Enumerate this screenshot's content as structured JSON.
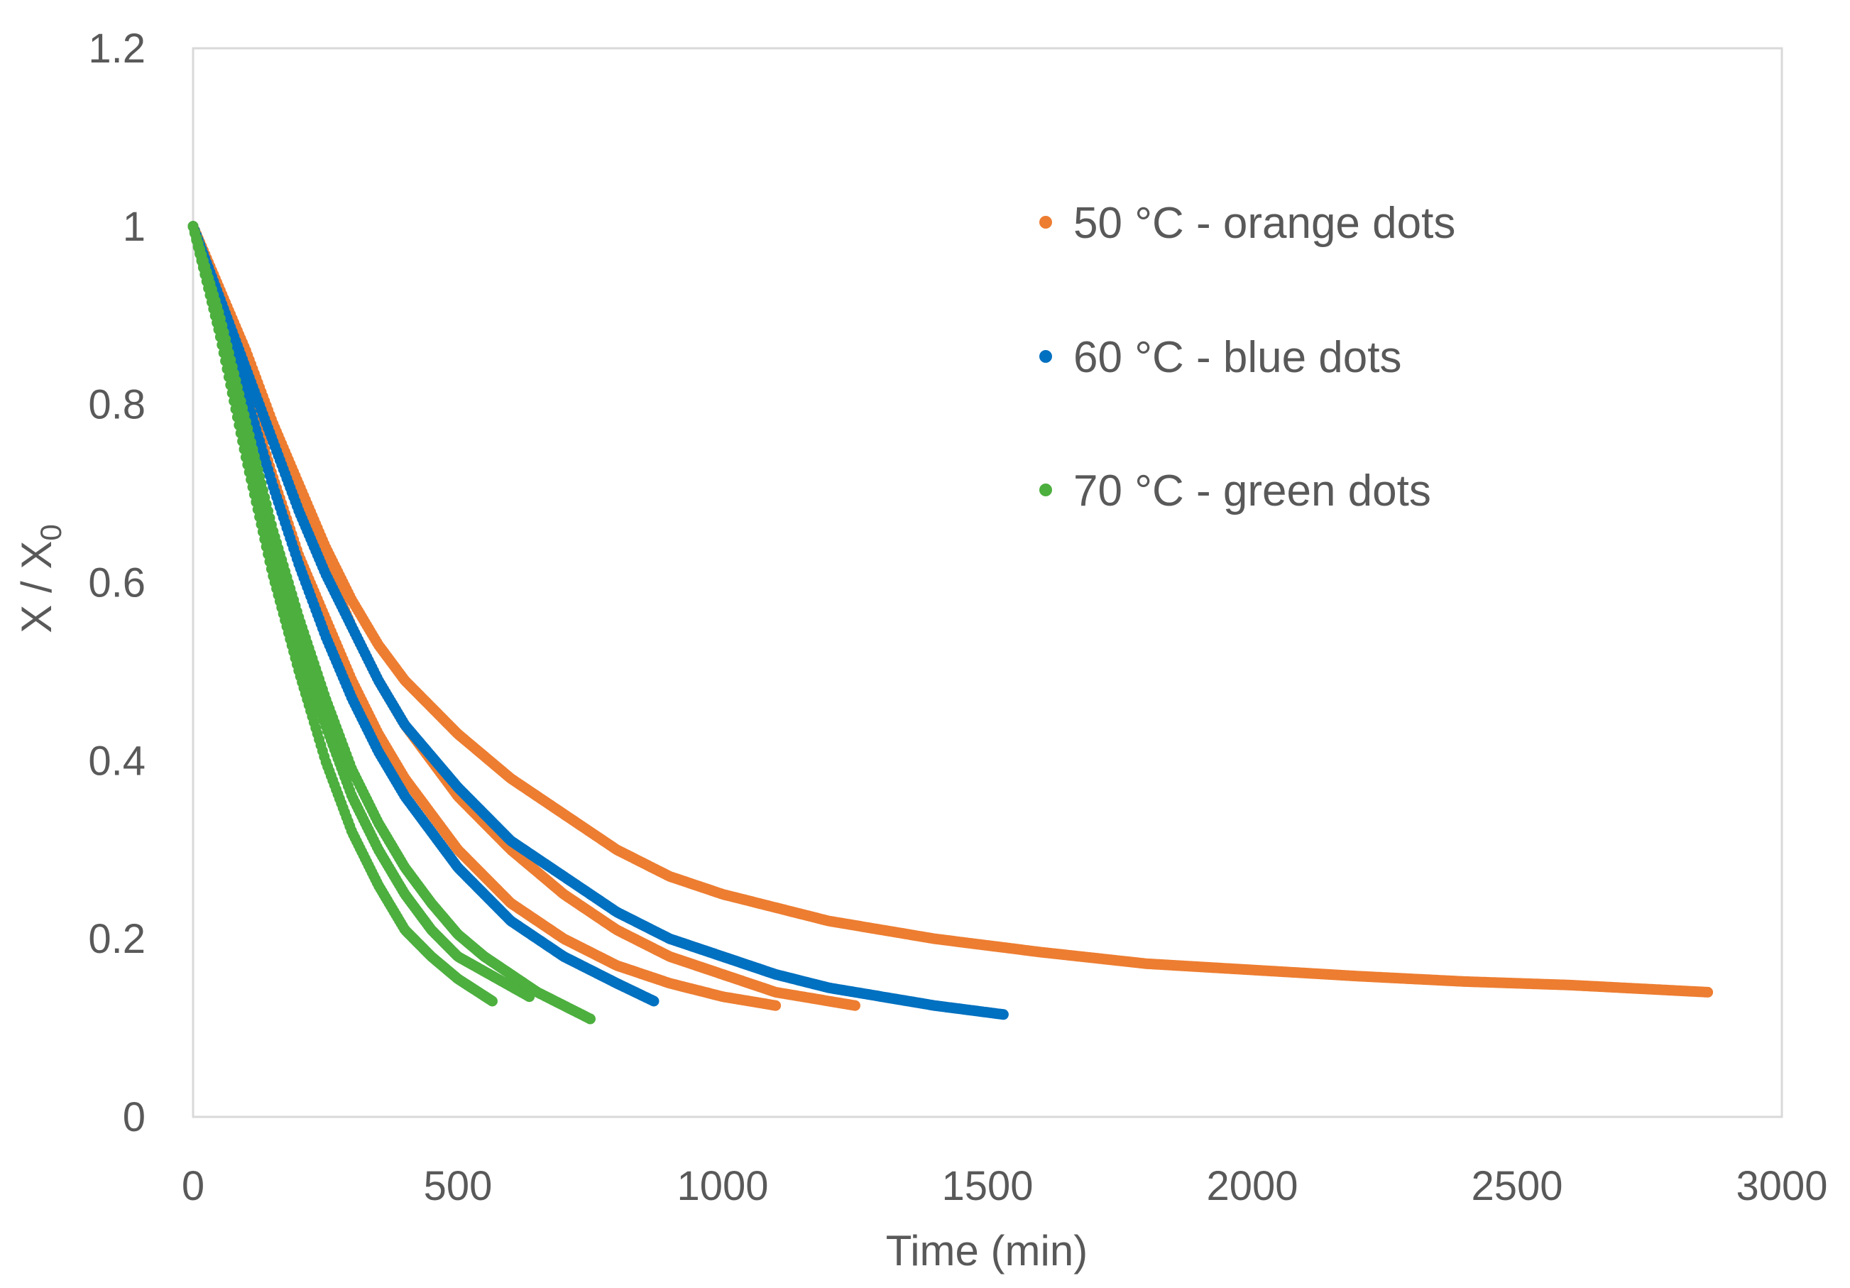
{
  "chart_data": {
    "type": "scatter",
    "title": "",
    "xlabel": "Time (min)",
    "ylabel": {
      "main": "X / X",
      "subscript": "0"
    },
    "xlim": [
      0,
      3000
    ],
    "ylim": [
      0,
      1.2
    ],
    "xticks": [
      0,
      500,
      1000,
      1500,
      2000,
      2500,
      3000
    ],
    "yticks": [
      0,
      0.2,
      0.4,
      0.6,
      0.8,
      1,
      1.2
    ],
    "xtick_labels": [
      "0",
      "500",
      "1000",
      "1500",
      "2000",
      "2500",
      "3000"
    ],
    "ytick_labels": [
      "0",
      "0.2",
      "0.4",
      "0.6",
      "0.8",
      "1",
      "1.2"
    ],
    "grid": false,
    "legend_position": "top-right",
    "series": [
      {
        "name": "50 °C - orange dots",
        "color": "#ED7D31",
        "runs": [
          {
            "x": [
              0,
              50,
              100,
              150,
              200,
              250,
              300,
              350,
              400,
              500,
              600,
              700,
              800,
              900,
              1000,
              1100
            ],
            "y": [
              1.0,
              0.92,
              0.82,
              0.72,
              0.63,
              0.56,
              0.49,
              0.43,
              0.38,
              0.3,
              0.24,
              0.2,
              0.17,
              0.15,
              0.135,
              0.125
            ]
          },
          {
            "x": [
              0,
              50,
              100,
              150,
              200,
              250,
              300,
              350,
              400,
              500,
              600,
              700,
              800,
              900,
              1000,
              1100,
              1250
            ],
            "y": [
              1.0,
              0.93,
              0.85,
              0.77,
              0.69,
              0.62,
              0.55,
              0.49,
              0.44,
              0.36,
              0.3,
              0.25,
              0.21,
              0.18,
              0.16,
              0.14,
              0.125
            ]
          },
          {
            "x": [
              0,
              50,
              100,
              150,
              200,
              250,
              300,
              350,
              400,
              500,
              600,
              700,
              800,
              900,
              1000,
              1200,
              1400,
              1600,
              1800,
              2000,
              2200,
              2400,
              2600,
              2860
            ],
            "y": [
              1.0,
              0.93,
              0.86,
              0.78,
              0.71,
              0.64,
              0.58,
              0.53,
              0.49,
              0.43,
              0.38,
              0.34,
              0.3,
              0.27,
              0.25,
              0.22,
              0.2,
              0.185,
              0.172,
              0.165,
              0.158,
              0.152,
              0.148,
              0.14
            ]
          }
        ]
      },
      {
        "name": "60 °C - blue dots",
        "color": "#0070C0",
        "runs": [
          {
            "x": [
              0,
              50,
              100,
              150,
              200,
              250,
              300,
              350,
              400,
              500,
              600,
              700,
              800,
              870
            ],
            "y": [
              1.0,
              0.91,
              0.81,
              0.71,
              0.62,
              0.54,
              0.47,
              0.41,
              0.36,
              0.28,
              0.22,
              0.18,
              0.15,
              0.13
            ]
          },
          {
            "x": [
              0,
              50,
              100,
              150,
              200,
              250,
              300,
              350,
              400,
              500,
              600,
              700,
              800,
              900,
              1000,
              1100,
              1200,
              1300,
              1400,
              1530
            ],
            "y": [
              1.0,
              0.92,
              0.84,
              0.76,
              0.68,
              0.61,
              0.55,
              0.49,
              0.44,
              0.37,
              0.31,
              0.27,
              0.23,
              0.2,
              0.18,
              0.16,
              0.145,
              0.135,
              0.125,
              0.115
            ]
          }
        ]
      },
      {
        "name": "70 °C - green dots",
        "color": "#4CAF3E",
        "runs": [
          {
            "x": [
              0,
              50,
              100,
              150,
              200,
              250,
              300,
              350,
              400,
              450,
              500,
              565
            ],
            "y": [
              1.0,
              0.88,
              0.74,
              0.61,
              0.5,
              0.4,
              0.32,
              0.26,
              0.21,
              0.18,
              0.155,
              0.13
            ]
          },
          {
            "x": [
              0,
              50,
              100,
              150,
              200,
              250,
              300,
              350,
              400,
              450,
              500,
              560,
              635
            ],
            "y": [
              1.0,
              0.89,
              0.76,
              0.64,
              0.53,
              0.44,
              0.36,
              0.3,
              0.25,
              0.21,
              0.18,
              0.16,
              0.135
            ]
          },
          {
            "x": [
              0,
              50,
              100,
              150,
              200,
              250,
              300,
              350,
              400,
              450,
              500,
              550,
              600,
              650,
              700,
              750
            ],
            "y": [
              1.0,
              0.9,
              0.78,
              0.66,
              0.56,
              0.47,
              0.39,
              0.33,
              0.28,
              0.24,
              0.205,
              0.18,
              0.16,
              0.14,
              0.125,
              0.11
            ]
          }
        ]
      }
    ]
  }
}
